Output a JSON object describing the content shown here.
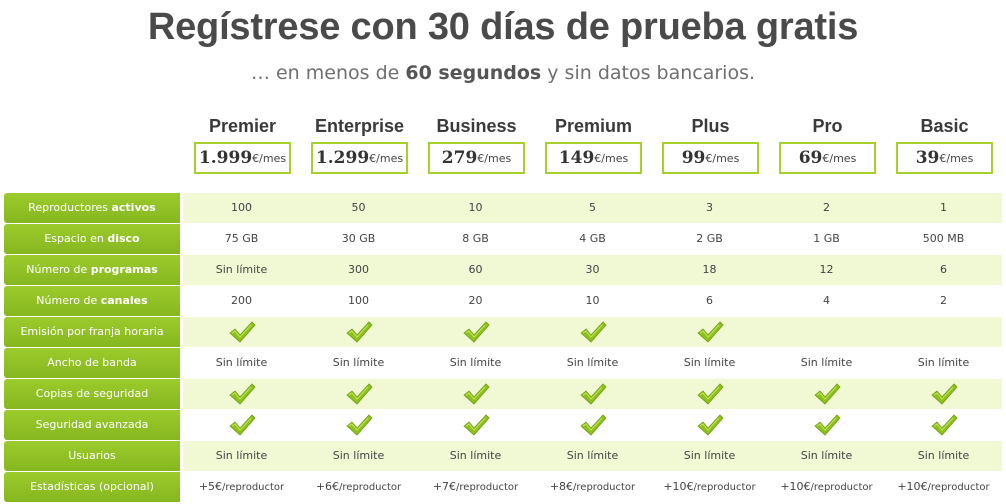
{
  "header": {
    "title": "Regístrese con 30 días de prueba gratis",
    "subtitle_pre": "… en menos de ",
    "subtitle_bold": "60 segundos",
    "subtitle_post": " y sin datos bancarios."
  },
  "plans": [
    {
      "name": "Premier",
      "price": "1.999",
      "unit": "€/mes"
    },
    {
      "name": "Enterprise",
      "price": "1.299",
      "unit": "€/mes"
    },
    {
      "name": "Business",
      "price": "279",
      "unit": "€/mes"
    },
    {
      "name": "Premium",
      "price": "149",
      "unit": "€/mes"
    },
    {
      "name": "Plus",
      "price": "99",
      "unit": "€/mes"
    },
    {
      "name": "Pro",
      "price": "69",
      "unit": "€/mes"
    },
    {
      "name": "Basic",
      "price": "39",
      "unit": "€/mes"
    }
  ],
  "colors": {
    "accent_green": "#9ccb2c",
    "row_tint": "#f0f8d4",
    "check_green": "#8cc21a"
  },
  "features": [
    {
      "label_pre": "Reproductores ",
      "label_bold": "activos",
      "label_post": "",
      "type": "text",
      "values": [
        "100",
        "50",
        "10",
        "5",
        "3",
        "2",
        "1"
      ]
    },
    {
      "label_pre": "Espacio en ",
      "label_bold": "disco",
      "label_post": "",
      "type": "text",
      "values": [
        "75 GB",
        "30 GB",
        "8 GB",
        "4 GB",
        "2 GB",
        "1 GB",
        "500 MB"
      ]
    },
    {
      "label_pre": "Número de ",
      "label_bold": "programas",
      "label_post": "",
      "type": "text",
      "values": [
        "Sin límite",
        "300",
        "60",
        "30",
        "18",
        "12",
        "6"
      ]
    },
    {
      "label_pre": "Número de ",
      "label_bold": "canales",
      "label_post": "",
      "type": "text",
      "values": [
        "200",
        "100",
        "20",
        "10",
        "6",
        "4",
        "2"
      ]
    },
    {
      "label_pre": "Emisión por franja horaria",
      "label_bold": "",
      "label_post": "",
      "type": "check",
      "values": [
        true,
        true,
        true,
        true,
        true,
        false,
        false
      ]
    },
    {
      "label_pre": "Ancho de banda",
      "label_bold": "",
      "label_post": "",
      "type": "text",
      "values": [
        "Sin límite",
        "Sin límite",
        "Sin límite",
        "Sin límite",
        "Sin límite",
        "Sin límite",
        "Sin límite"
      ]
    },
    {
      "label_pre": "Copias de seguridad",
      "label_bold": "",
      "label_post": "",
      "type": "check",
      "values": [
        true,
        true,
        true,
        true,
        true,
        true,
        true
      ]
    },
    {
      "label_pre": "Seguridad avanzada",
      "label_bold": "",
      "label_post": "",
      "type": "check",
      "values": [
        true,
        true,
        true,
        true,
        true,
        true,
        true
      ]
    },
    {
      "label_pre": "Usuarios",
      "label_bold": "",
      "label_post": "",
      "type": "text",
      "values": [
        "Sin límite",
        "Sin límite",
        "Sin límite",
        "Sin límite",
        "Sin límite",
        "Sin límite",
        "Sin límite"
      ]
    },
    {
      "label_pre": "Estadísticas (opcional)",
      "label_bold": "",
      "label_post": "",
      "type": "addon",
      "values": [
        {
          "amount": "+5€",
          "unit": "/reproductor"
        },
        {
          "amount": "+6€",
          "unit": "/reproductor"
        },
        {
          "amount": "+7€",
          "unit": "/reproductor"
        },
        {
          "amount": "+8€",
          "unit": "/reproductor"
        },
        {
          "amount": "+10€",
          "unit": "/reproductor"
        },
        {
          "amount": "+10€",
          "unit": "/reproductor"
        },
        {
          "amount": "+10€",
          "unit": "/reproductor"
        }
      ]
    }
  ]
}
